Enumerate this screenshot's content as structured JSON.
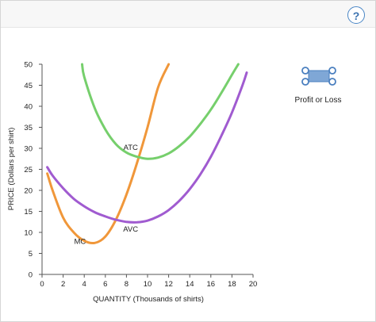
{
  "help": {
    "label": "?"
  },
  "tool": {
    "label": "Profit or Loss",
    "color": "#7fa7d6",
    "outline": "#4a7fbf"
  },
  "chart_data": {
    "type": "line",
    "xlabel": "QUANTITY (Thousands of shirts)",
    "ylabel": "PRICE (Dollars per shirt)",
    "xlim": [
      0,
      20
    ],
    "ylim": [
      0,
      50
    ],
    "xticks": [
      0,
      2,
      4,
      6,
      8,
      10,
      12,
      14,
      16,
      18,
      20
    ],
    "yticks": [
      0,
      5,
      10,
      15,
      20,
      25,
      30,
      35,
      40,
      45,
      50
    ],
    "grid": false,
    "series": [
      {
        "name": "MC",
        "color": "#f0973a",
        "x": [
          0.5,
          1,
          2,
          3,
          4,
          5,
          6,
          7,
          8,
          9,
          10,
          11,
          12
        ],
        "y": [
          24,
          20,
          13.5,
          10,
          8,
          7.5,
          9,
          13,
          19,
          26.5,
          35,
          44.5,
          50
        ]
      },
      {
        "name": "ATC",
        "color": "#76cf6c",
        "x": [
          3.8,
          4,
          5,
          6,
          7,
          8,
          9,
          10,
          11,
          12,
          13,
          14,
          15,
          16,
          17,
          18,
          18.6
        ],
        "y": [
          50,
          47,
          39.5,
          34.5,
          31,
          29,
          28,
          27.5,
          27.8,
          28.8,
          30.5,
          32.8,
          35.8,
          39.2,
          43.2,
          47.5,
          50
        ]
      },
      {
        "name": "AVC",
        "color": "#a05bd0",
        "x": [
          0.5,
          1,
          2,
          3,
          4,
          5,
          6,
          7,
          8,
          9,
          10,
          11,
          12,
          13,
          14,
          15,
          16,
          17,
          18,
          19,
          19.4
        ],
        "y": [
          25.5,
          23.5,
          20.5,
          18,
          16.2,
          14.8,
          13.8,
          13,
          12.5,
          12.4,
          12.8,
          13.8,
          15.3,
          17.5,
          20.3,
          23.8,
          28,
          33,
          38.5,
          45,
          48
        ]
      }
    ],
    "annotations": [
      {
        "text": "MC",
        "x": 3.6,
        "y": 7.3
      },
      {
        "text": "ATC",
        "x": 8.4,
        "y": 29.6
      },
      {
        "text": "AVC",
        "x": 8.4,
        "y": 10.2
      }
    ]
  }
}
